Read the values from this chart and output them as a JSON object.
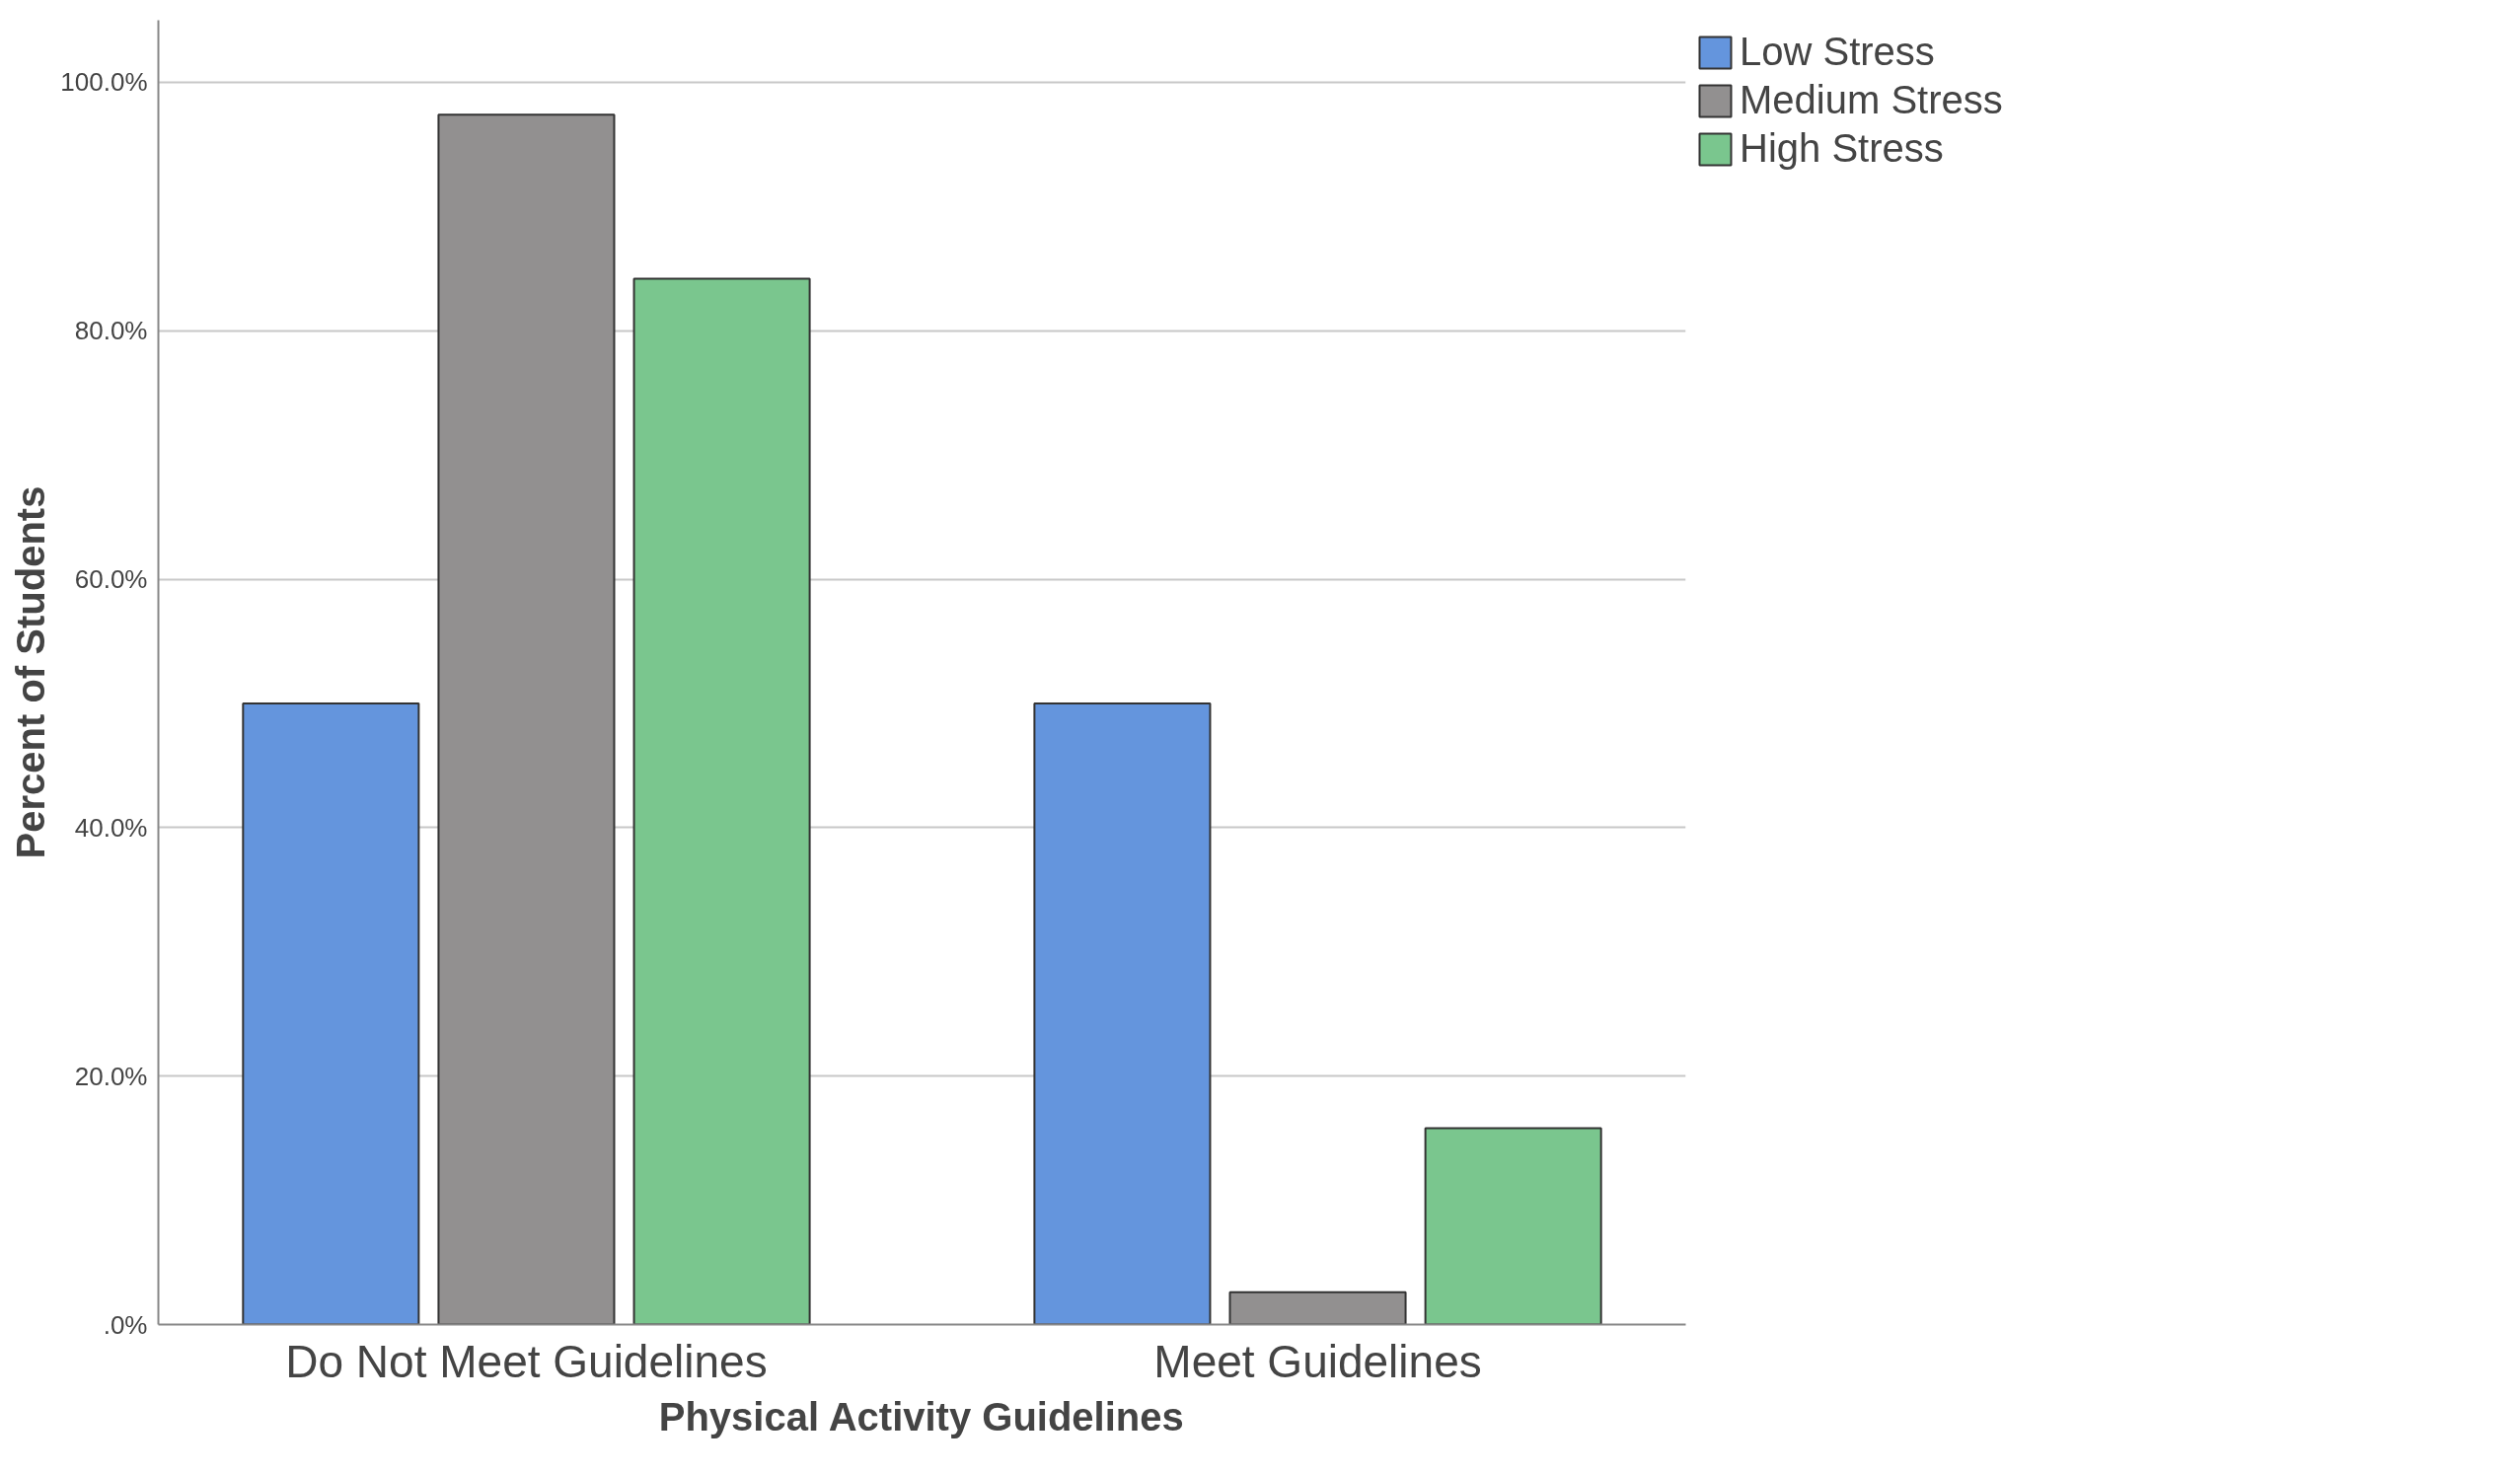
{
  "chart_data": {
    "type": "bar",
    "xlabel": "Physical Activity Guidelines",
    "ylabel": "Percent of Students",
    "categories": [
      "Do Not Meet Guidelines",
      "Meet Guidelines"
    ],
    "series": [
      {
        "name": "Low Stress",
        "color": "#6495dd",
        "values": [
          50.0,
          50.0
        ]
      },
      {
        "name": "Medium Stress",
        "color": "#929090",
        "values": [
          97.4,
          2.6
        ]
      },
      {
        "name": "High Stress",
        "color": "#7ac68e",
        "values": [
          84.2,
          15.8
        ]
      }
    ],
    "ylim": [
      0,
      105
    ],
    "yticks": [
      {
        "value": 0,
        "label": ".0%"
      },
      {
        "value": 20,
        "label": "20.0%"
      },
      {
        "value": 40,
        "label": "40.0%"
      },
      {
        "value": 60,
        "label": "60.0%"
      },
      {
        "value": 80,
        "label": "80.0%"
      },
      {
        "value": 100,
        "label": "100.0%"
      }
    ],
    "grid": "y",
    "legend": "top right"
  }
}
